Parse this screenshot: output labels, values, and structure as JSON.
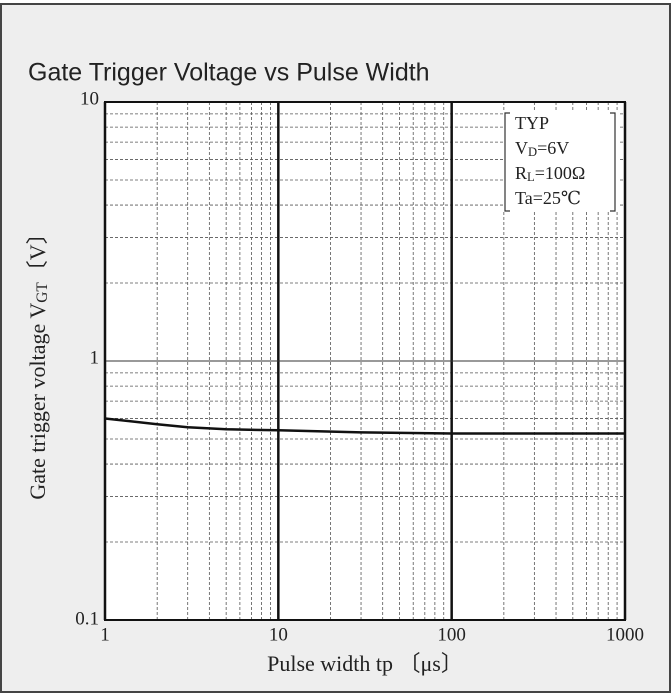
{
  "chart_data": {
    "type": "line",
    "title": "Gate Trigger Voltage vs Pulse Width",
    "xlabel": "Pulse width  tp 〔μs〕",
    "ylabel": {
      "text": "Gate trigger voltage V",
      "sub": "GT",
      "after": "〔V〕"
    },
    "annotations": [
      {
        "text": "TYP"
      },
      {
        "text": "V",
        "sub": "D",
        "after": "=6V"
      },
      {
        "text": "R",
        "sub": "L",
        "after": "=100Ω"
      },
      {
        "text": "Ta=25℃"
      }
    ],
    "x": [
      1,
      2,
      3,
      5,
      10,
      30,
      100,
      1000
    ],
    "series": [
      {
        "name": "TYP",
        "color": "#111111",
        "values": [
          0.6,
          0.57,
          0.555,
          0.545,
          0.54,
          0.53,
          0.525,
          0.525
        ]
      }
    ],
    "xlim": [
      1,
      1000
    ],
    "ylim": [
      0.1,
      10
    ],
    "xticks": [
      1,
      10,
      100,
      1000
    ],
    "yticks": [
      0.1,
      1,
      10
    ],
    "log_x": true,
    "log_y": true,
    "grid": true
  }
}
